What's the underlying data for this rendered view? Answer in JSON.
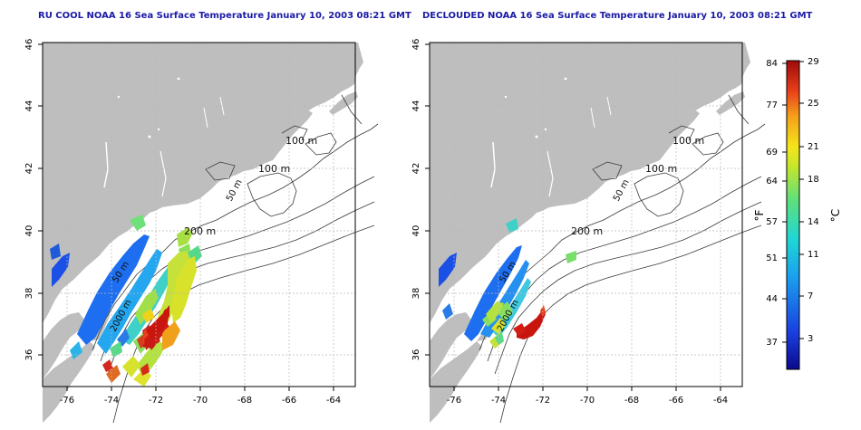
{
  "panels": [
    {
      "title": "RU COOL NOAA 16 Sea Surface Temperature January 10, 2003 08:21 GMT",
      "contour_labels": [
        "100 m",
        "100 m",
        "50 m",
        "200 m",
        "50 m",
        "2000 m"
      ]
    },
    {
      "title": "DECLOUDED NOAA 16 Sea Surface Temperature January 10, 2003 08:21 GMT",
      "contour_labels": [
        "100 m",
        "100 m",
        "50 m",
        "200 m",
        "50 m",
        "2000 m"
      ]
    }
  ],
  "map": {
    "lon_ticks": [
      "-76",
      "-74",
      "-72",
      "-70",
      "-68",
      "-66",
      "-64"
    ],
    "lat_ticks": [
      "36",
      "38",
      "40",
      "42",
      "44",
      "46"
    ],
    "land_color": "#bebebe",
    "grid": true
  },
  "colorbar": {
    "f_label": "°F",
    "c_label": "°C",
    "f_ticks": [
      "84",
      "77",
      "69",
      "64",
      "57",
      "51",
      "44",
      "37"
    ],
    "c_ticks": [
      "29",
      "25",
      "21",
      "18",
      "14",
      "11",
      "7",
      "3"
    ]
  }
}
